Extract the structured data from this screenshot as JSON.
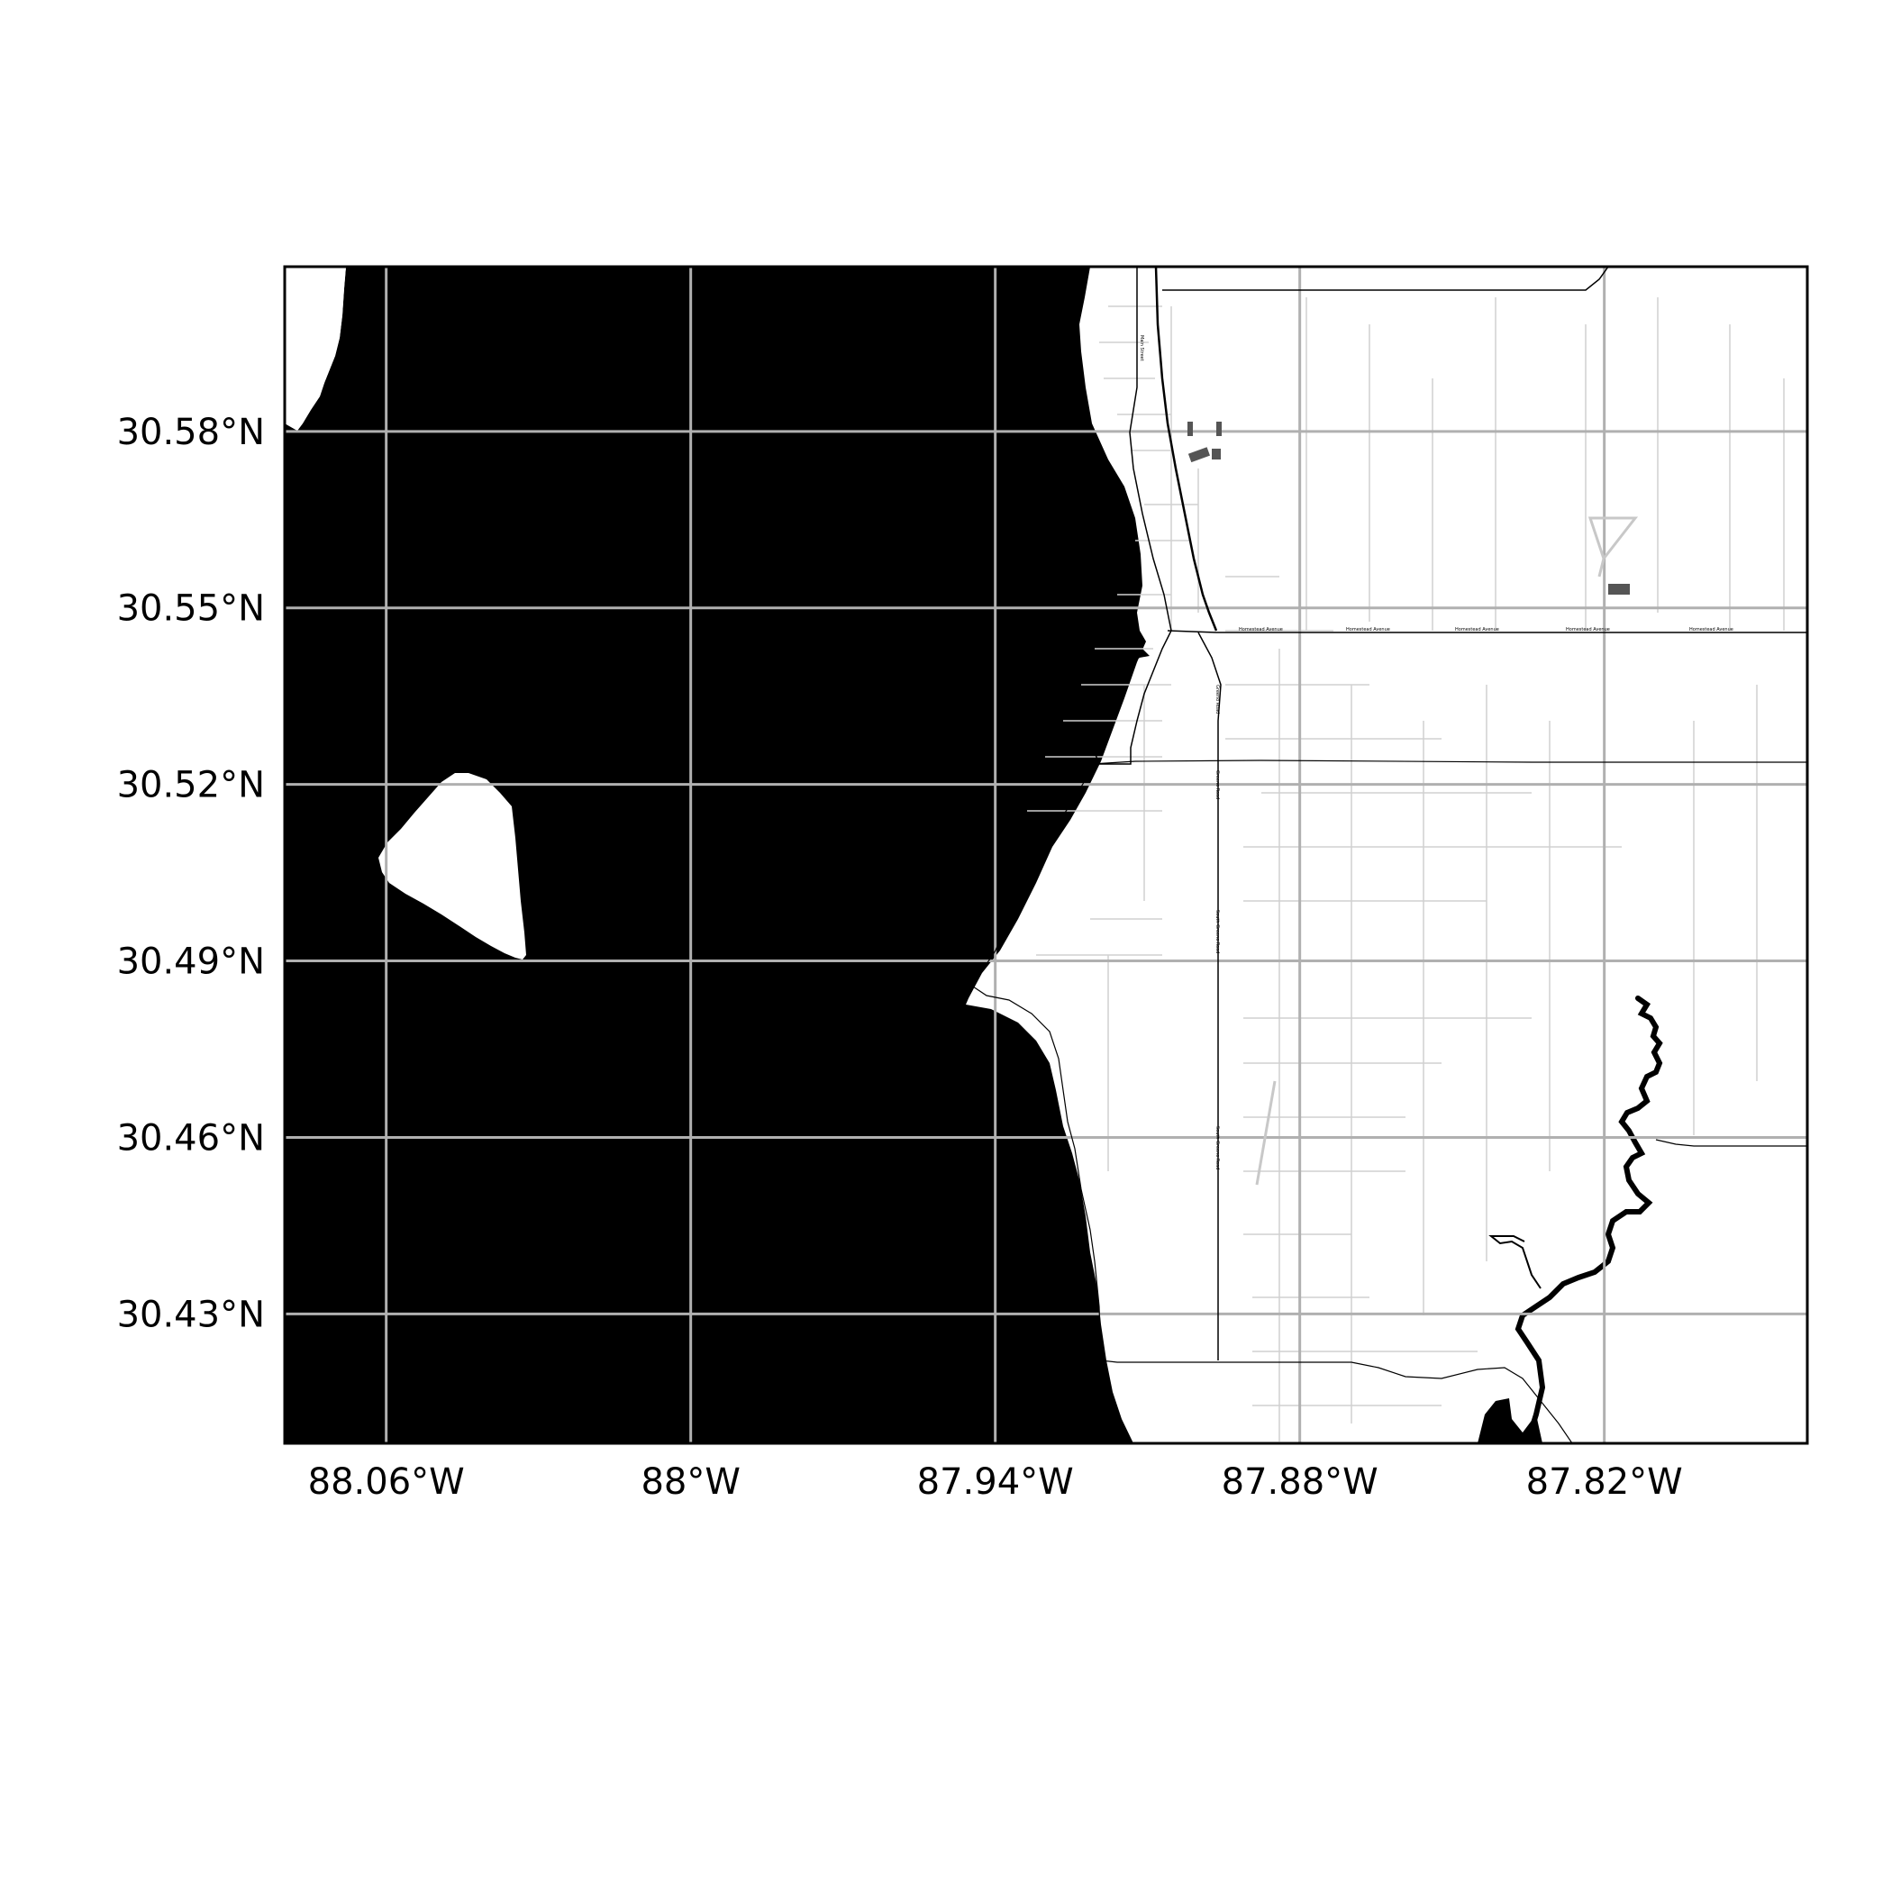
{
  "map": {
    "colors": {
      "water": "#000000",
      "land": "#ffffff",
      "grid": "#b0b0b0",
      "road": "#000000",
      "minor_road": "#d0d0d0",
      "frame": "#000000"
    },
    "extent": {
      "lon_min": -88.08,
      "lon_max": -87.78,
      "lat_min": 30.408,
      "lat_max": 30.608
    },
    "grid": true,
    "x_ticks": [
      {
        "lon": -88.06,
        "label": "88.06°W"
      },
      {
        "lon": -88.0,
        "label": "88°W"
      },
      {
        "lon": -87.94,
        "label": "87.94°W"
      },
      {
        "lon": -87.88,
        "label": "87.88°W"
      },
      {
        "lon": -87.82,
        "label": "87.82°W"
      }
    ],
    "y_ticks": [
      {
        "lat": 30.58,
        "label": "30.58°N"
      },
      {
        "lat": 30.55,
        "label": "30.55°N"
      },
      {
        "lat": 30.52,
        "label": "30.52°N"
      },
      {
        "lat": 30.49,
        "label": "30.49°N"
      },
      {
        "lat": 30.46,
        "label": "30.46°N"
      },
      {
        "lat": 30.43,
        "label": "30.43°N"
      }
    ],
    "road_labels": [
      {
        "text": "Homestead Avenue"
      },
      {
        "text": "Homestead Avenue"
      },
      {
        "text": "Homestead Avenue"
      },
      {
        "text": "Homestead Avenue"
      },
      {
        "text": "Homestead Avenue"
      },
      {
        "text": "Greeno Road"
      },
      {
        "text": "Greeno Road"
      },
      {
        "text": "South Greeno Road"
      },
      {
        "text": "South Greeno Road"
      },
      {
        "text": "Main Street"
      }
    ]
  }
}
